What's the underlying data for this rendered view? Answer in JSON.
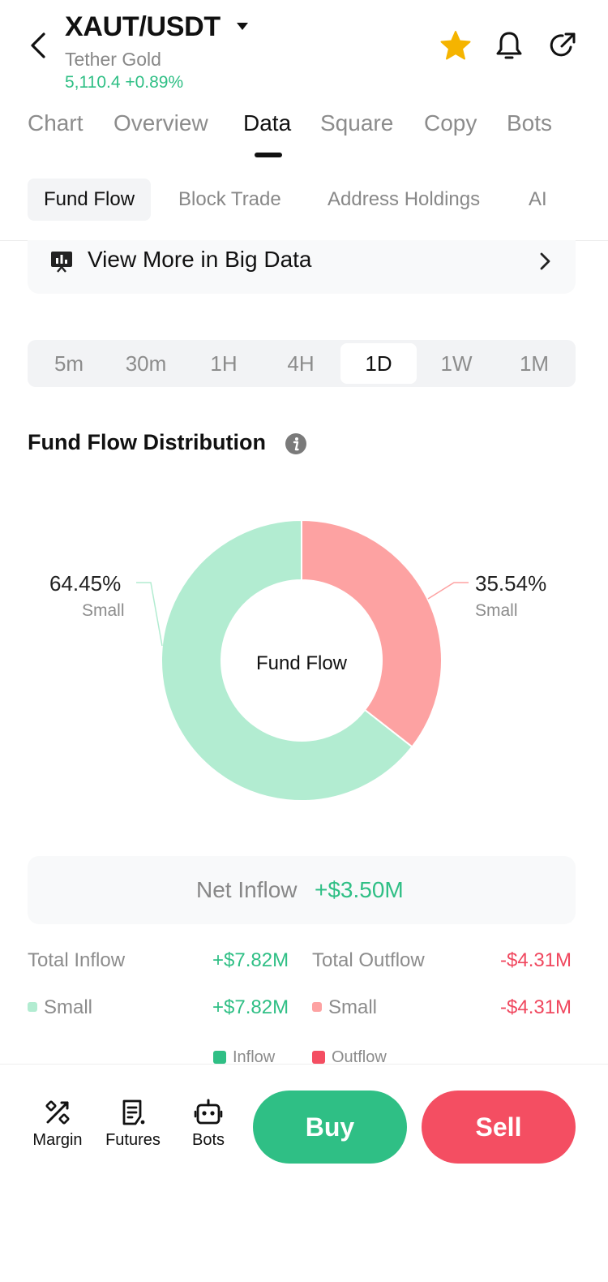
{
  "header": {
    "pair": "XAUT/USDT",
    "name": "Tether Gold",
    "price_line": "5,110.4  +0.89%"
  },
  "tabs": [
    {
      "label": "Chart",
      "active": false
    },
    {
      "label": "Overview",
      "active": false
    },
    {
      "label": "Data",
      "active": true
    },
    {
      "label": "Square",
      "active": false
    },
    {
      "label": "Copy",
      "active": false
    },
    {
      "label": "Bots",
      "active": false
    }
  ],
  "subtabs": [
    {
      "label": "Fund Flow",
      "active": true
    },
    {
      "label": "Block Trade",
      "active": false
    },
    {
      "label": "Address Holdings",
      "active": false
    },
    {
      "label": "AI",
      "active": false
    }
  ],
  "bigdata": {
    "label": "View More in Big Data"
  },
  "timeframes": [
    {
      "label": "5m",
      "active": false
    },
    {
      "label": "30m",
      "active": false
    },
    {
      "label": "1H",
      "active": false
    },
    {
      "label": "4H",
      "active": false
    },
    {
      "label": "1D",
      "active": true
    },
    {
      "label": "1W",
      "active": false
    },
    {
      "label": "1M",
      "active": false
    }
  ],
  "distribution": {
    "title": "Fund Flow Distribution",
    "center_label": "Fund Flow"
  },
  "chart_data": {
    "type": "pie",
    "title": "",
    "center_label": "Fund Flow",
    "slices": [
      {
        "label": "Small",
        "value": 35.54,
        "display": "35.54%",
        "category": "Outflow",
        "color": "#fda2a2"
      },
      {
        "label": "Small",
        "value": 64.45,
        "display": "64.45%",
        "category": "Inflow",
        "color": "#b2ecd1"
      }
    ],
    "legend": [
      "Inflow",
      "Outflow"
    ],
    "legend_position": "bottom"
  },
  "net": {
    "label": "Net Inflow",
    "value": "+$3.50M"
  },
  "totals": {
    "inflow_label": "Total Inflow",
    "inflow_value": "+$7.82M",
    "outflow_label": "Total Outflow",
    "outflow_value": "-$4.31M",
    "inflow_small_label": "Small",
    "inflow_small_value": "+$7.82M",
    "outflow_small_label": "Small",
    "outflow_small_value": "-$4.31M"
  },
  "legend": {
    "inflow": "Inflow",
    "outflow": "Outflow"
  },
  "bottom_nav": [
    {
      "label": "Margin",
      "icon": "margin-icon"
    },
    {
      "label": "Futures",
      "icon": "futures-icon"
    },
    {
      "label": "Bots",
      "icon": "bots-icon"
    }
  ],
  "actions": {
    "buy": "Buy",
    "sell": "Sell"
  },
  "colors": {
    "inflow": "#2fbf85",
    "outflow": "#f44e62",
    "inflow_light": "#b2ecd1",
    "outflow_light": "#fda2a2",
    "star": "#f5b400"
  }
}
